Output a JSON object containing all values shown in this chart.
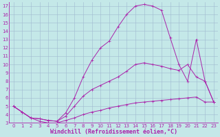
{
  "background_color": "#c4e8e8",
  "grid_color": "#a0b8d0",
  "line_color": "#aa22aa",
  "xlabel": "Windchill (Refroidissement éolien,°C)",
  "xlabel_color": "#aa22aa",
  "xlim": [
    -0.5,
    23.5
  ],
  "ylim": [
    3,
    17.5
  ],
  "xticks": [
    0,
    1,
    2,
    3,
    4,
    5,
    6,
    7,
    8,
    9,
    10,
    11,
    12,
    13,
    14,
    15,
    16,
    17,
    18,
    19,
    20,
    21,
    22,
    23
  ],
  "yticks": [
    3,
    4,
    5,
    6,
    7,
    8,
    9,
    10,
    11,
    12,
    13,
    14,
    15,
    16,
    17
  ],
  "line1_x": [
    0,
    1,
    2,
    3,
    4,
    5,
    6,
    7,
    8,
    9,
    10,
    11,
    12,
    13,
    14,
    15,
    16,
    17,
    18,
    19,
    20,
    21,
    22,
    23
  ],
  "line1_y": [
    5.0,
    4.3,
    3.6,
    3.2,
    3.0,
    3.0,
    3.3,
    3.6,
    4.0,
    4.3,
    4.5,
    4.8,
    5.0,
    5.2,
    5.4,
    5.5,
    5.6,
    5.7,
    5.8,
    5.9,
    6.0,
    6.1,
    5.5,
    5.5
  ],
  "line2_x": [
    0,
    1,
    2,
    3,
    4,
    5,
    6,
    7,
    8,
    9,
    10,
    11,
    12,
    13,
    14,
    15,
    16,
    17,
    18,
    19,
    20,
    21,
    22,
    23
  ],
  "line2_y": [
    5.0,
    4.3,
    3.6,
    3.5,
    3.3,
    3.2,
    3.8,
    5.0,
    6.2,
    7.0,
    7.5,
    8.0,
    8.5,
    9.2,
    10.0,
    10.2,
    10.0,
    9.8,
    9.5,
    9.3,
    10.0,
    8.5,
    8.0,
    5.5
  ],
  "line3_x": [
    0,
    1,
    2,
    3,
    4,
    5,
    6,
    7,
    8,
    9,
    10,
    11,
    12,
    13,
    14,
    15,
    16,
    17,
    18,
    19,
    20,
    21,
    22,
    23
  ],
  "line3_y": [
    5.0,
    4.3,
    3.6,
    3.5,
    3.3,
    3.2,
    4.2,
    6.0,
    8.5,
    10.5,
    12.0,
    12.8,
    14.5,
    16.0,
    17.0,
    17.2,
    17.0,
    16.5,
    13.2,
    10.0,
    8.0,
    13.0,
    8.0,
    5.5
  ],
  "tick_fontsize": 5,
  "xlabel_fontsize": 6,
  "marker_size": 1.5,
  "linewidth": 0.7
}
